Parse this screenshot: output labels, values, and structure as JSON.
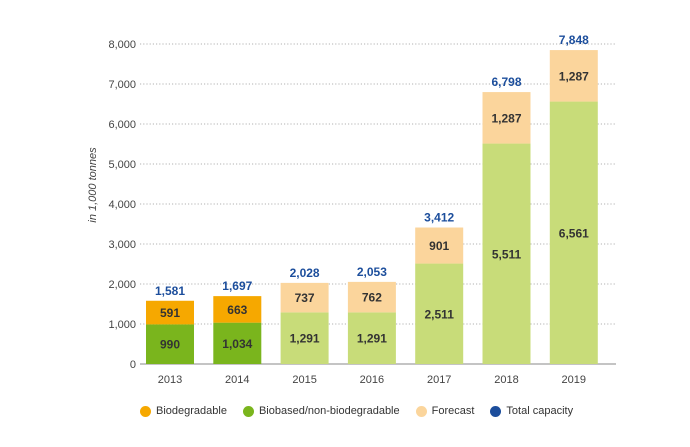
{
  "chart_data": {
    "type": "bar",
    "stacked": true,
    "title": "",
    "xlabel": "",
    "ylabel": "in 1,000 tonnes",
    "ylim": [
      0,
      8000
    ],
    "yticks": [
      0,
      1000,
      2000,
      3000,
      4000,
      5000,
      6000,
      7000,
      8000
    ],
    "ytick_labels": [
      "0",
      "1,000",
      "2,000",
      "3,000",
      "4,000",
      "5,000",
      "6,000",
      "7,000",
      "8,000"
    ],
    "categories": [
      "2013",
      "2014",
      "2015",
      "2016",
      "2017",
      "2018",
      "2019"
    ],
    "series": [
      {
        "name": "Biobased/non-biodegradable",
        "values": [
          990,
          1034,
          1291,
          1291,
          2511,
          5511,
          6561
        ],
        "labels": [
          "990",
          "1,034",
          "1,291",
          "1,291",
          "2,511",
          "5,511",
          "6,561"
        ],
        "colors": [
          "#7ab51d",
          "#7ab51d",
          "#c8dc79",
          "#c8dc79",
          "#c8dc79",
          "#c8dc79",
          "#c8dc79"
        ]
      },
      {
        "name": "Biodegradable",
        "values": [
          591,
          663,
          737,
          762,
          901,
          1287,
          1287
        ],
        "labels": [
          "591",
          "663",
          "737",
          "762",
          "901",
          "1,287",
          "1,287"
        ],
        "colors": [
          "#f6a800",
          "#f6a800",
          "#fbd59c",
          "#fbd59c",
          "#fbd59c",
          "#fbd59c",
          "#fbd59c"
        ]
      }
    ],
    "totals": [
      1581,
      1697,
      2028,
      2053,
      3412,
      6798,
      7848
    ],
    "total_labels": [
      "1,581",
      "1,697",
      "2,028",
      "2,053",
      "3,412",
      "6,798",
      "7,848"
    ],
    "legend": [
      {
        "label": "Biodegradable",
        "color": "#f6a800"
      },
      {
        "label": "Biobased/non-biodegradable",
        "color": "#7ab51d"
      },
      {
        "label": "Forecast",
        "color": "#fbd59c"
      },
      {
        "label": "Total capacity",
        "color": "#1c4e9c"
      }
    ],
    "legend_position": "bottom",
    "grid": true,
    "colors": {
      "total_label": "#1c4e9c",
      "value_label": "#333333",
      "axis_text": "#444444",
      "grid": "#999999"
    }
  }
}
